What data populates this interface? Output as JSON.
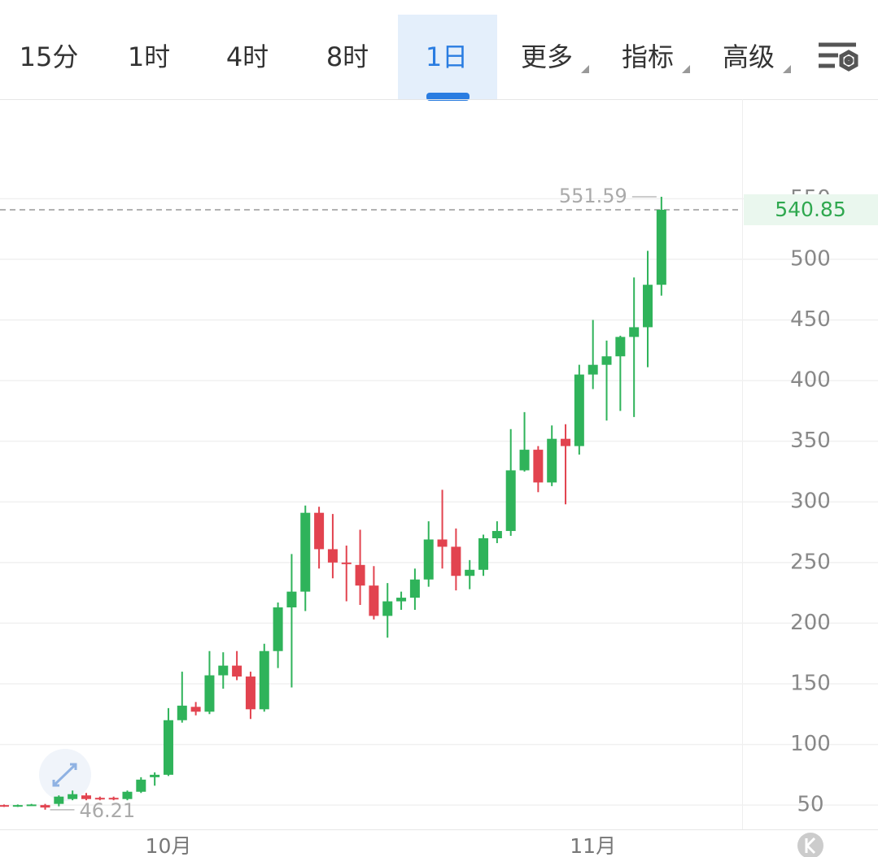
{
  "tabs": [
    "15分",
    "1时",
    "4时",
    "8时",
    "1日",
    "更多",
    "指标",
    "高级"
  ],
  "active_tab": 4,
  "chart_data": {
    "type": "candlestick",
    "categories": [
      null,
      null,
      null,
      null,
      null,
      null,
      null,
      null,
      null,
      null,
      null,
      null,
      "10月",
      null,
      null,
      null,
      null,
      null,
      null,
      null,
      null,
      null,
      null,
      null,
      null,
      null,
      null,
      null,
      null,
      null,
      null,
      null,
      null,
      null,
      null,
      null,
      null,
      null,
      null,
      null,
      null,
      null,
      null,
      "11月",
      null,
      null,
      null,
      null,
      null
    ],
    "open": [
      50,
      49,
      50,
      50,
      51,
      55,
      58,
      56,
      56,
      55,
      61,
      73,
      75,
      120,
      131,
      127,
      157,
      165,
      156,
      129,
      177,
      213,
      226,
      291,
      261,
      250,
      248,
      231,
      206,
      218,
      221,
      236,
      269,
      263,
      239,
      244,
      270,
      276,
      326,
      343,
      316,
      352,
      346,
      405,
      413,
      420,
      436,
      444,
      479
    ],
    "close": [
      49,
      50,
      50.5,
      48,
      57,
      59,
      55,
      55,
      55,
      61,
      71,
      75,
      120,
      132,
      127,
      157,
      165,
      156,
      129,
      177,
      213,
      226,
      291,
      261,
      250,
      249.5,
      231,
      206,
      218,
      221,
      236,
      269,
      263,
      239,
      244,
      270,
      276,
      326,
      343,
      316,
      352,
      346,
      405,
      413,
      420,
      436,
      444,
      479,
      540.85
    ],
    "high": [
      50.5,
      50.5,
      51,
      51,
      58,
      62,
      60,
      57,
      57,
      62,
      73,
      77,
      130,
      160,
      135,
      177,
      176,
      177,
      160,
      183,
      217,
      257,
      297,
      296,
      290,
      264,
      277,
      247,
      233,
      226,
      245,
      284,
      310,
      278,
      252,
      273,
      284,
      360,
      374,
      346,
      363,
      364,
      413,
      450,
      433,
      437,
      485,
      507,
      551.59
    ],
    "low": [
      48.5,
      48.5,
      49.5,
      46.21,
      49,
      54,
      54,
      54,
      54,
      54,
      60,
      66,
      74,
      118,
      124,
      125,
      146,
      153,
      121,
      127,
      163,
      147,
      210,
      245,
      237,
      218,
      215,
      203,
      188,
      211,
      211,
      230,
      245,
      227,
      228,
      239,
      266,
      272,
      325,
      308,
      313,
      298,
      339,
      393,
      367,
      375,
      370,
      411,
      470
    ],
    "up_color": "#2fb35a",
    "down_color": "#e2434f",
    "ylim": [
      30,
      632
    ],
    "yticks": [
      50,
      100,
      150,
      200,
      250,
      300,
      350,
      400,
      450,
      500,
      550
    ],
    "grid": true,
    "max_label": 551.59,
    "min_label": 46.21,
    "last_price": 540.85
  }
}
